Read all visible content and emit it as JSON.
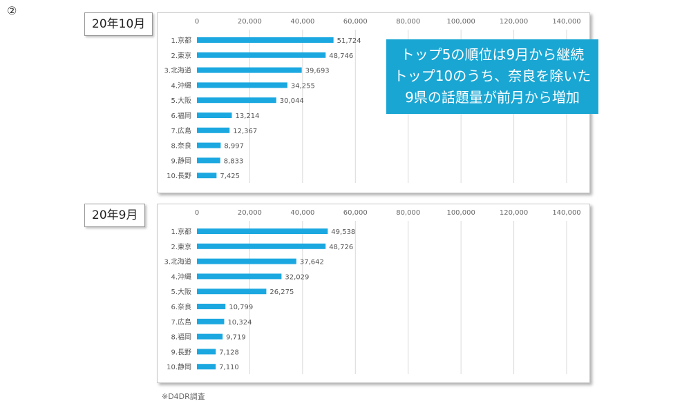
{
  "marker": "②",
  "callout": {
    "lines": [
      "トップ5の順位は9月から継続",
      "トップ10のうち、奈良を除いた",
      "9県の話題量が前月から増加"
    ]
  },
  "footnote": "※D4DR調査",
  "colors": {
    "bar": "#1ba8e0",
    "callout_bg": "#1aa6d3"
  },
  "chart_data": [
    {
      "type": "bar",
      "orientation": "horizontal",
      "title": "20年10月",
      "xlim": [
        0,
        140000
      ],
      "xticks": [
        "0",
        "20,000",
        "40,000",
        "60,000",
        "80,000",
        "100,000",
        "120,000",
        "140,000"
      ],
      "grid": true,
      "categories": [
        "1.京都",
        "2.東京",
        "3.北海道",
        "4.沖縄",
        "5.大阪",
        "6.福岡",
        "7.広島",
        "8.奈良",
        "9.静岡",
        "10.長野"
      ],
      "values": [
        51724,
        48746,
        39693,
        34255,
        30044,
        13214,
        12367,
        8997,
        8833,
        7425
      ],
      "labels": [
        "51,724",
        "48,746",
        "39,693",
        "34,255",
        "30,044",
        "13,214",
        "12,367",
        "8,997",
        "8,833",
        "7,425"
      ]
    },
    {
      "type": "bar",
      "orientation": "horizontal",
      "title": "20年9月",
      "xlim": [
        0,
        140000
      ],
      "xticks": [
        "0",
        "20,000",
        "40,000",
        "60,000",
        "80,000",
        "100,000",
        "120,000",
        "140,000"
      ],
      "grid": true,
      "categories": [
        "1.京都",
        "2.東京",
        "3.北海道",
        "4.沖縄",
        "5.大阪",
        "6.奈良",
        "7.広島",
        "8.福岡",
        "9.長野",
        "10.静岡"
      ],
      "values": [
        49538,
        48726,
        37642,
        32029,
        26275,
        10799,
        10324,
        9719,
        7128,
        7110
      ],
      "labels": [
        "49,538",
        "48,726",
        "37,642",
        "32,029",
        "26,275",
        "10,799",
        "10,324",
        "9,719",
        "7,128",
        "7,110"
      ]
    }
  ]
}
